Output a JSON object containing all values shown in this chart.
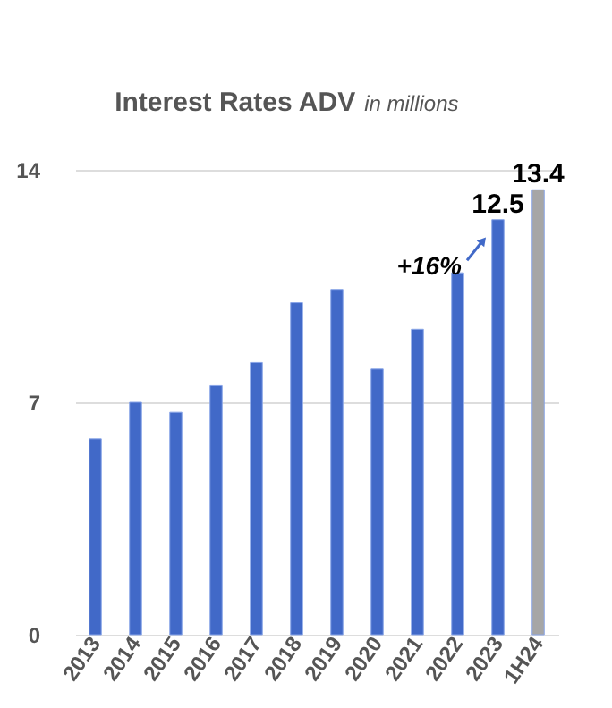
{
  "chart_data": {
    "type": "bar",
    "title": "Interest Rates ADV",
    "subtitle": "in millions",
    "categories": [
      "2013",
      "2014",
      "2015",
      "2016",
      "2017",
      "2018",
      "2019",
      "2020",
      "2021",
      "2022",
      "2023",
      "1H24"
    ],
    "values": [
      5.9,
      7.0,
      6.7,
      7.5,
      8.2,
      10.0,
      10.4,
      8.0,
      9.2,
      10.9,
      12.5,
      13.4
    ],
    "colors": [
      "#4169c8",
      "#4169c8",
      "#4169c8",
      "#4169c8",
      "#4169c8",
      "#4169c8",
      "#4169c8",
      "#4169c8",
      "#4169c8",
      "#4169c8",
      "#4169c8",
      "#a6a6a6"
    ],
    "value_labels": [
      null,
      null,
      null,
      null,
      null,
      null,
      null,
      null,
      null,
      null,
      "12.5",
      "13.4"
    ],
    "annotations": [
      "+16%"
    ],
    "ylim": [
      0,
      14
    ],
    "yticks": [
      0,
      7,
      14
    ],
    "grid": "y"
  }
}
